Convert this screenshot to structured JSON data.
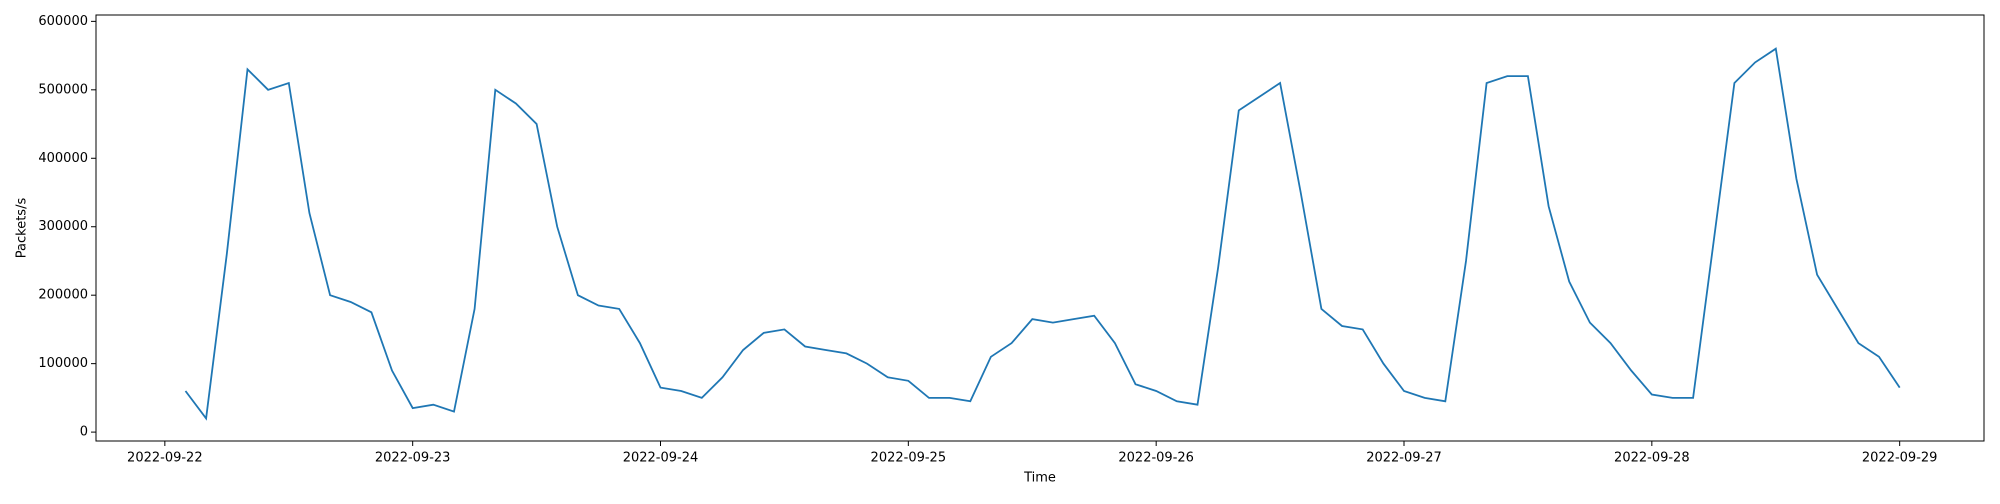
{
  "chart_data": {
    "type": "line",
    "xlabel": "Time",
    "ylabel": "Packets/s",
    "x": [
      "2022-09-22 02:00",
      "2022-09-22 04:00",
      "2022-09-22 06:00",
      "2022-09-22 08:00",
      "2022-09-22 10:00",
      "2022-09-22 12:00",
      "2022-09-22 14:00",
      "2022-09-22 16:00",
      "2022-09-22 18:00",
      "2022-09-22 20:00",
      "2022-09-22 22:00",
      "2022-09-23 00:00",
      "2022-09-23 02:00",
      "2022-09-23 04:00",
      "2022-09-23 06:00",
      "2022-09-23 08:00",
      "2022-09-23 10:00",
      "2022-09-23 12:00",
      "2022-09-23 14:00",
      "2022-09-23 16:00",
      "2022-09-23 18:00",
      "2022-09-23 20:00",
      "2022-09-23 22:00",
      "2022-09-24 00:00",
      "2022-09-24 02:00",
      "2022-09-24 04:00",
      "2022-09-24 06:00",
      "2022-09-24 08:00",
      "2022-09-24 10:00",
      "2022-09-24 12:00",
      "2022-09-24 14:00",
      "2022-09-24 16:00",
      "2022-09-24 18:00",
      "2022-09-24 20:00",
      "2022-09-24 22:00",
      "2022-09-25 00:00",
      "2022-09-25 02:00",
      "2022-09-25 04:00",
      "2022-09-25 06:00",
      "2022-09-25 08:00",
      "2022-09-25 10:00",
      "2022-09-25 12:00",
      "2022-09-25 14:00",
      "2022-09-25 16:00",
      "2022-09-25 18:00",
      "2022-09-25 20:00",
      "2022-09-25 22:00",
      "2022-09-26 00:00",
      "2022-09-26 02:00",
      "2022-09-26 04:00",
      "2022-09-26 06:00",
      "2022-09-26 08:00",
      "2022-09-26 10:00",
      "2022-09-26 12:00",
      "2022-09-26 14:00",
      "2022-09-26 16:00",
      "2022-09-26 18:00",
      "2022-09-26 20:00",
      "2022-09-26 22:00",
      "2022-09-27 00:00",
      "2022-09-27 02:00",
      "2022-09-27 04:00",
      "2022-09-27 06:00",
      "2022-09-27 08:00",
      "2022-09-27 10:00",
      "2022-09-27 12:00",
      "2022-09-27 14:00",
      "2022-09-27 16:00",
      "2022-09-27 18:00",
      "2022-09-27 20:00",
      "2022-09-27 22:00",
      "2022-09-28 00:00",
      "2022-09-28 02:00",
      "2022-09-28 04:00",
      "2022-09-28 06:00",
      "2022-09-28 08:00",
      "2022-09-28 10:00",
      "2022-09-28 12:00",
      "2022-09-28 14:00",
      "2022-09-28 16:00",
      "2022-09-28 18:00",
      "2022-09-28 20:00",
      "2022-09-28 22:00",
      "2022-09-29 00:00"
    ],
    "series": [
      {
        "color": "#1f77b4",
        "values": [
          60000,
          20000,
          260000,
          530000,
          500000,
          510000,
          320000,
          200000,
          190000,
          175000,
          90000,
          35000,
          40000,
          30000,
          180000,
          500000,
          480000,
          450000,
          300000,
          200000,
          185000,
          180000,
          130000,
          65000,
          60000,
          50000,
          80000,
          120000,
          145000,
          150000,
          125000,
          120000,
          115000,
          100000,
          80000,
          75000,
          50000,
          50000,
          45000,
          110000,
          130000,
          165000,
          160000,
          165000,
          170000,
          130000,
          70000,
          60000,
          45000,
          40000,
          240000,
          470000,
          490000,
          510000,
          350000,
          180000,
          155000,
          150000,
          100000,
          60000,
          50000,
          45000,
          250000,
          510000,
          520000,
          520000,
          330000,
          220000,
          160000,
          130000,
          90000,
          55000,
          50000,
          50000,
          280000,
          510000,
          540000,
          560000,
          370000,
          230000,
          180000,
          130000,
          110000,
          65000
        ]
      }
    ],
    "xlim": [
      "2022-09-21 17:20",
      "2022-09-29 08:10"
    ],
    "xticks": [
      "2022-09-22",
      "2022-09-23",
      "2022-09-24",
      "2022-09-25",
      "2022-09-26",
      "2022-09-27",
      "2022-09-28",
      "2022-09-29"
    ],
    "ylim": [
      -13000,
      609300
    ],
    "yticks": [
      0,
      100000,
      200000,
      300000,
      400000,
      500000,
      600000
    ]
  }
}
